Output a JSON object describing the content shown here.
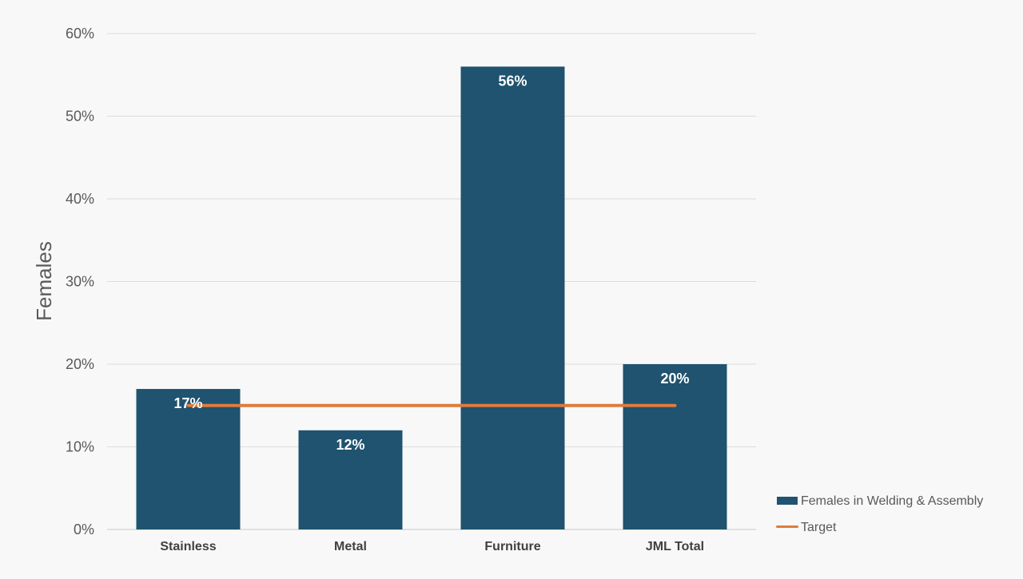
{
  "chart_data": {
    "type": "bar",
    "title": "",
    "xlabel": "",
    "ylabel": "Females",
    "categories": [
      "Stainless",
      "Metal",
      "Furniture",
      "JML Total"
    ],
    "series": [
      {
        "name": "Females in Welding & Assembly",
        "kind": "bar",
        "color": "#1f536f",
        "values": [
          17,
          12,
          56,
          20
        ],
        "data_labels": [
          "17%",
          "12%",
          "56%",
          "20%"
        ]
      },
      {
        "name": "Target",
        "kind": "line",
        "color": "#e07b3c",
        "values": [
          15,
          15,
          15,
          15
        ]
      }
    ],
    "ylim": [
      0,
      60
    ],
    "yticks": [
      0,
      10,
      20,
      30,
      40,
      50,
      60
    ],
    "ytick_labels": [
      "0%",
      "10%",
      "20%",
      "30%",
      "40%",
      "50%",
      "60%"
    ],
    "grid": true,
    "legend_position": "bottom-right"
  }
}
